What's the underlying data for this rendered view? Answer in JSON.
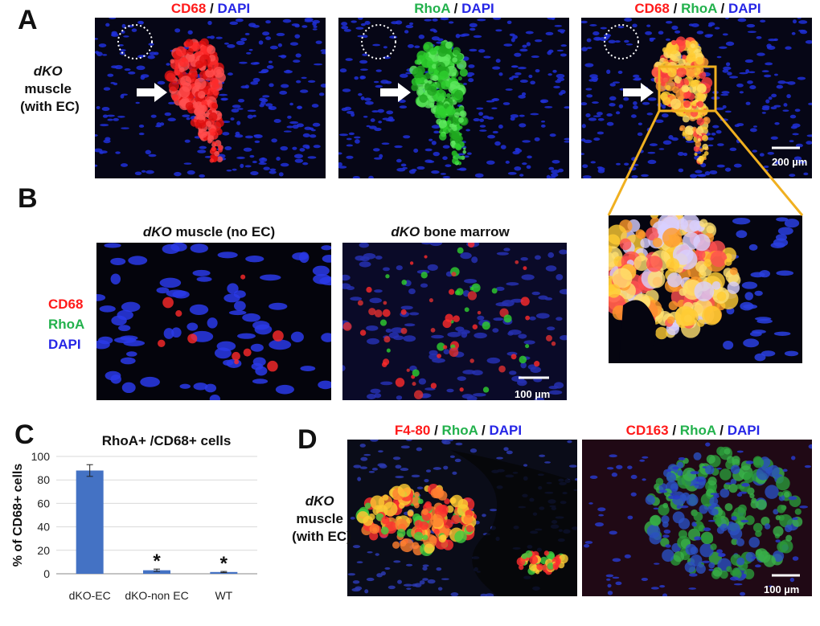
{
  "panels": {
    "A": {
      "label": "A",
      "side_label": [
        "dKO",
        "muscle",
        "(with EC)"
      ],
      "images": [
        {
          "title": [
            "CD68",
            "/",
            "DAPI"
          ]
        },
        {
          "title": [
            "RhoA",
            "/",
            "DAPI"
          ]
        },
        {
          "title": [
            "CD68",
            "/",
            "RhoA",
            "/",
            "DAPI"
          ]
        }
      ],
      "scale_bar": "200 µm"
    },
    "B": {
      "label": "B",
      "images": [
        {
          "title": [
            "dKO",
            "muscle (no EC)"
          ]
        },
        {
          "title": [
            "dKO",
            "bone marrow"
          ]
        }
      ],
      "legend": [
        "CD68",
        "RhoA",
        "DAPI"
      ],
      "scale_bar": "100 µm"
    },
    "C": {
      "label": "C"
    },
    "D": {
      "label": "D",
      "side_label": [
        "dKO",
        "muscle",
        "(with EC)"
      ],
      "images": [
        {
          "title": [
            "F4-80",
            "/",
            "RhoA",
            "/",
            "DAPI"
          ]
        },
        {
          "title": [
            "CD163",
            "/",
            "RhoA",
            "/",
            "DAPI"
          ]
        }
      ],
      "scale_bar": "100 µm"
    }
  },
  "chart_data": {
    "type": "bar",
    "title": "RhoA+ /CD68+ cells",
    "y_label": "% of CD68+ cells",
    "categories": [
      "dKO-EC",
      "dKO-non EC",
      "WT"
    ],
    "values": [
      88,
      3,
      1.5
    ],
    "errors": [
      5,
      1,
      0.5
    ],
    "annotations": [
      {
        "category": "dKO-non EC",
        "text": "*"
      },
      {
        "category": "WT",
        "text": "*"
      }
    ],
    "color": "#4472c4",
    "ylim": [
      0,
      100
    ],
    "yticks": [
      0,
      20,
      40,
      60,
      80,
      100
    ],
    "grid": true
  }
}
